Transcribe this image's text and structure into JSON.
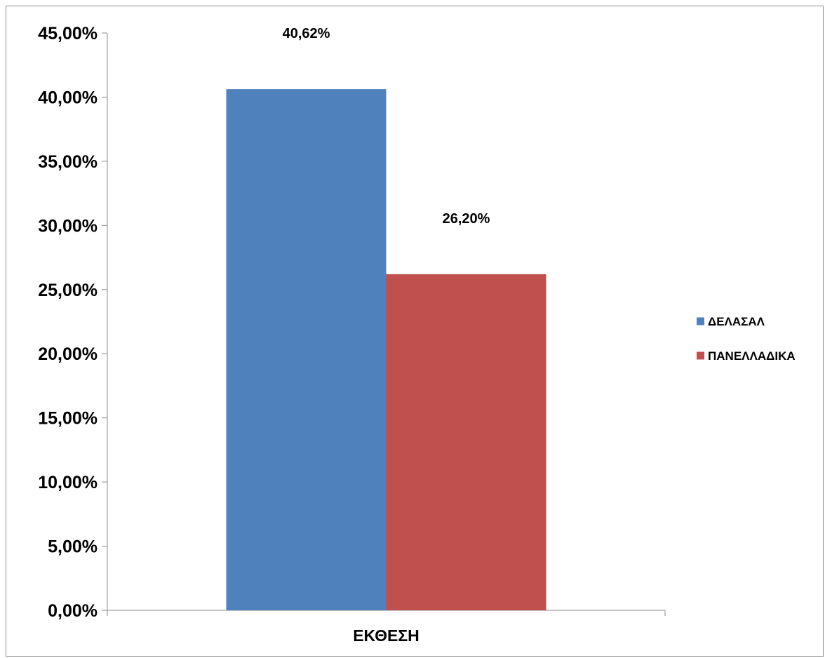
{
  "chart_data": {
    "type": "bar",
    "categories": [
      "ΕΚΘΕΣΗ"
    ],
    "series": [
      {
        "name": "ΔΕΛΑΣΑΛ",
        "values": [
          40.62
        ],
        "color": "#4F81BD",
        "label": "40,62%"
      },
      {
        "name": "ΠΑΝΕΛΛΑΔΙΚΑ",
        "values": [
          26.2
        ],
        "color": "#C0504D",
        "label": "26,20%"
      }
    ],
    "yticks": [
      0,
      5,
      10,
      15,
      20,
      25,
      30,
      35,
      40,
      45
    ],
    "ytick_labels": [
      "0,00%",
      "5,00%",
      "10,00%",
      "15,00%",
      "20,00%",
      "25,00%",
      "30,00%",
      "35,00%",
      "40,00%",
      "45,00%"
    ],
    "ylim": [
      0,
      45
    ],
    "grid": false,
    "legend_position": "right"
  }
}
